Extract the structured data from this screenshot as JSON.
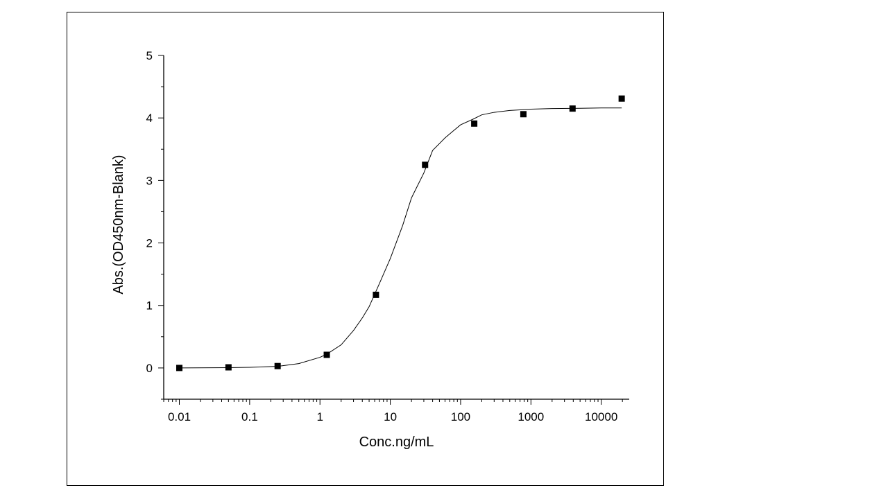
{
  "chart_data": {
    "type": "scatter",
    "xlabel": "Conc.ng/mL",
    "ylabel": "Abs.(OD450nm-Blank)",
    "x_scale": "log",
    "xlim": [
      0.006,
      25000
    ],
    "ylim": [
      -0.5,
      5
    ],
    "x_ticks": [
      0.01,
      0.1,
      1,
      10,
      100,
      1000,
      10000
    ],
    "x_tick_labels": [
      "0.01",
      "0.1",
      "1",
      "10",
      "100",
      "1000",
      "10000"
    ],
    "y_ticks": [
      0,
      1,
      2,
      3,
      4,
      5
    ],
    "y_tick_labels": [
      "0",
      "1",
      "2",
      "3",
      "4",
      "5"
    ],
    "grid": false,
    "series": [
      {
        "kind": "points",
        "marker": "square",
        "x": [
          0.01,
          0.05,
          0.25,
          1.25,
          6.25,
          31.25,
          156.25,
          781.25,
          3906.25,
          19531.25
        ],
        "y": [
          0.0,
          0.01,
          0.03,
          0.21,
          1.17,
          3.25,
          3.91,
          4.06,
          4.15,
          4.31
        ]
      },
      {
        "kind": "fit",
        "x": [
          0.01,
          0.05,
          0.1,
          0.25,
          0.5,
          1.0,
          1.25,
          2.0,
          3.0,
          4.0,
          5.0,
          7.0,
          10.0,
          15.0,
          20.0,
          30.0,
          40.0,
          60.0,
          80.0,
          100.0,
          150.0,
          200.0,
          300.0,
          500.0,
          1000.0,
          2000.0,
          5000.0,
          10000.0,
          19531.25
        ],
        "y": [
          0.0,
          0.005,
          0.01,
          0.025,
          0.07,
          0.17,
          0.22,
          0.37,
          0.6,
          0.8,
          0.98,
          1.35,
          1.75,
          2.28,
          2.72,
          3.12,
          3.48,
          3.68,
          3.8,
          3.89,
          3.98,
          4.05,
          4.09,
          4.12,
          4.14,
          4.15,
          4.155,
          4.16,
          4.16
        ]
      }
    ]
  }
}
